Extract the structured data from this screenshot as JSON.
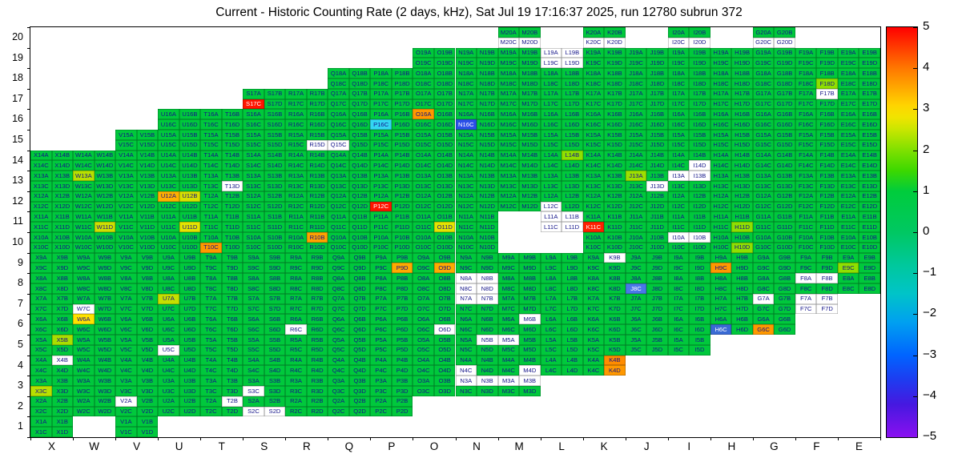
{
  "title": "Current - Historic Counting Rate (2 days, kHz), Sat Jul 19 17:16:37 2025, run 12780 subrun 372",
  "chart_data": {
    "type": "heatmap",
    "title": "Current - Historic Counting Rate (2 days, kHz), Sat Jul 19 17:16:37 2025, run 12780 subrun 372",
    "x_categories": [
      "X",
      "W",
      "V",
      "U",
      "T",
      "S",
      "R",
      "Q",
      "P",
      "O",
      "N",
      "M",
      "L",
      "K",
      "J",
      "I",
      "H",
      "G",
      "F",
      "E"
    ],
    "y_categories": [
      "20",
      "19",
      "18",
      "17",
      "16",
      "15",
      "14",
      "13",
      "12",
      "11",
      "10",
      "9",
      "8",
      "7",
      "6",
      "5",
      "4",
      "3",
      "2",
      "1"
    ],
    "subcells": [
      "A",
      "B",
      "C",
      "D"
    ],
    "default_color": "#00c83c",
    "label_color": "#141489",
    "empty_color": "#ffffff",
    "colorbar": {
      "min": -5,
      "max": 5,
      "tick_labels": [
        "5",
        "4",
        "3",
        "2",
        "1",
        "0",
        "−1",
        "−2",
        "−3",
        "−4",
        "−5"
      ],
      "gradient": [
        [
          "#ff0000",
          0
        ],
        [
          "#ff3c00",
          0.05
        ],
        [
          "#ff7800",
          0.1
        ],
        [
          "#ffaa00",
          0.15
        ],
        [
          "#ffd400",
          0.19
        ],
        [
          "#f0e400",
          0.22
        ],
        [
          "#c8e600",
          0.25
        ],
        [
          "#7fe000",
          0.3
        ],
        [
          "#3cd800",
          0.35
        ],
        [
          "#00cc3c",
          0.4
        ],
        [
          "#00c862",
          0.5
        ],
        [
          "#00c89c",
          0.58
        ],
        [
          "#00c4c8",
          0.65
        ],
        [
          "#00a0f0",
          0.72
        ],
        [
          "#0064ff",
          0.8
        ],
        [
          "#1e3cf0",
          0.86
        ],
        [
          "#4618e0",
          0.92
        ],
        [
          "#8a10f0",
          1
        ]
      ]
    },
    "rows": [
      {
        "y": "20",
        "blocks": "M K I G",
        "white": "M20C M20D K20C K20D I20C I20D G20C G20D"
      },
      {
        "y": "19",
        "blocks": "O N M L K J I H G F E",
        "white": "L19A L19B L19C L19D"
      },
      {
        "y": "18",
        "blocks": "Q P O N M L K J I H G F E",
        "white": ""
      },
      {
        "y": "17",
        "blocks": "S R Q P O N M L K J I H G F E",
        "white": "F17B"
      },
      {
        "y": "16",
        "blocks": "U T S R Q P O N M L K J I H G F E",
        "white": ""
      },
      {
        "y": "15",
        "blocks": "V U T S R Q P O N M L K J I H G F E",
        "white": "R15D Q15C"
      },
      {
        "y": "14",
        "blocks": "X W V U T S R Q P O N M L K J I H G F E",
        "white": "I14D"
      },
      {
        "y": "13",
        "blocks": "X W V U T S R Q P O N M L K J I H G F E",
        "white": "T13D J13D I13A I13B"
      },
      {
        "y": "12",
        "blocks": "X W V U T S R Q P O N M L K J I H G F E",
        "white": "L12C"
      },
      {
        "y": "11",
        "blocks": "X W V U T S R Q P O N L K J I H G F E",
        "white": "L11A L11B L11C L11D"
      },
      {
        "y": "10",
        "blocks": "X W V U T S R Q P O N K J I H G F E",
        "white": "I10A I10B"
      },
      {
        "y": "9",
        "blocks": "X W V U T S R Q P O N M L K J I H G F E",
        "white": "K9B"
      },
      {
        "y": "8",
        "blocks": "X W V U T S R Q P O N M L K J I H G F E",
        "white": "N8A N8B N8C N8D F8A F8B"
      },
      {
        "y": "7",
        "blocks": "X W V U T S R Q P O N M L K J I H G F",
        "white": "W7C N7A N7B G7A F7A F7B F7C F7D"
      },
      {
        "y": "6",
        "blocks": "X W V U T S R Q P O N M L K J I H G",
        "white": "R6C O6D M6B"
      },
      {
        "y": "5",
        "blocks": "X W V U T S R Q P O N M L K J I",
        "white": "U5C N5B M5A"
      },
      {
        "y": "4",
        "blocks": "X W V U T S R Q P O N M L K",
        "white": "X4B N4C M4D"
      },
      {
        "y": "3",
        "blocks": "X W V U T S R Q P O N M",
        "white": "S3C N3A N3B M3A M3B"
      },
      {
        "y": "2",
        "blocks": "X W V U T S R Q P",
        "white": "V2A T2B S2C S2D"
      },
      {
        "y": "1",
        "blocks": "X V",
        "white": ""
      }
    ],
    "cell_overrides": [
      {
        "cell": "S17C",
        "color": "#ff1400",
        "light_text": true
      },
      {
        "cell": "P12C",
        "color": "#ff1400",
        "light_text": true
      },
      {
        "cell": "K11C",
        "color": "#ff2000",
        "light_text": true
      },
      {
        "cell": "O16A",
        "color": "#ff9800"
      },
      {
        "cell": "U12A",
        "color": "#ffb000"
      },
      {
        "cell": "U12B",
        "color": "#d8e000"
      },
      {
        "cell": "T10C",
        "color": "#ff9800"
      },
      {
        "cell": "R10B",
        "color": "#ffa200"
      },
      {
        "cell": "P9D",
        "color": "#ffaa00"
      },
      {
        "cell": "O9D",
        "color": "#ffaa00"
      },
      {
        "cell": "H9C",
        "color": "#ff9800"
      },
      {
        "cell": "K4B",
        "color": "#ff8c00"
      },
      {
        "cell": "K4D",
        "color": "#ff9800"
      },
      {
        "cell": "G6C",
        "color": "#ff9800"
      },
      {
        "cell": "W6A",
        "color": "#ffe200"
      },
      {
        "cell": "U11D",
        "color": "#e4e400"
      },
      {
        "cell": "O11D",
        "color": "#e4e400"
      },
      {
        "cell": "W11D",
        "color": "#cfe000"
      },
      {
        "cell": "F18D",
        "color": "#8fe000"
      },
      {
        "cell": "L14B",
        "color": "#8fe000"
      },
      {
        "cell": "W13A",
        "color": "#b8e000"
      },
      {
        "cell": "J13A",
        "color": "#9ee000"
      },
      {
        "cell": "H11D",
        "color": "#8fe000"
      },
      {
        "cell": "H10D",
        "color": "#8fe000"
      },
      {
        "cell": "E9C",
        "color": "#8fe000"
      },
      {
        "cell": "U7A",
        "color": "#c4e000"
      },
      {
        "cell": "X5B",
        "color": "#aade00"
      },
      {
        "cell": "X3C",
        "color": "#b8e000"
      },
      {
        "cell": "P16C",
        "color": "#33d6f2"
      },
      {
        "cell": "N16C",
        "color": "#2b50e8",
        "light_text": true
      },
      {
        "cell": "H6C",
        "color": "#3a6ad4",
        "light_text": true
      },
      {
        "cell": "J8C",
        "color": "#4a78e8",
        "light_text": true
      }
    ]
  }
}
